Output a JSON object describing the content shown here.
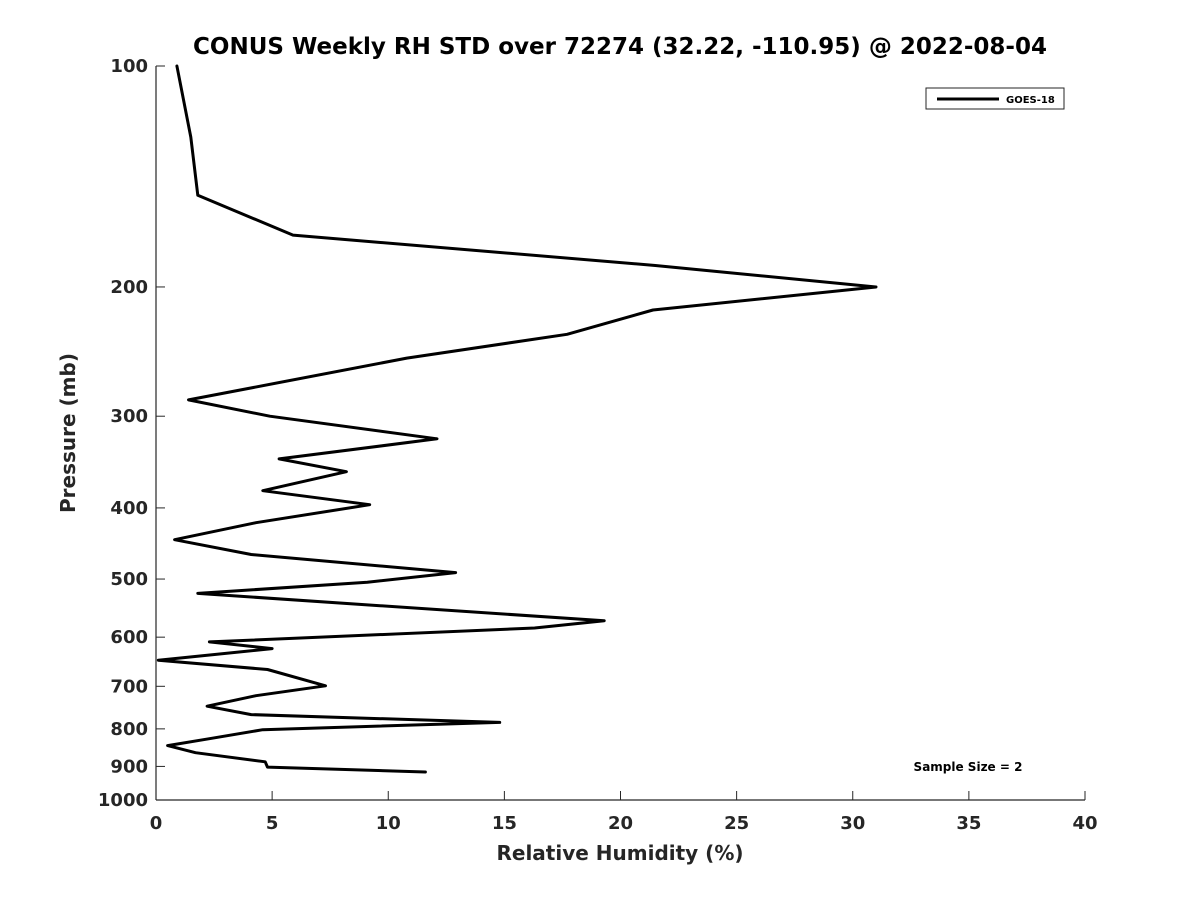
{
  "chart_data": {
    "type": "line",
    "title": "CONUS Weekly RH STD over 72274 (32.22, -110.95) @ 2022-08-04",
    "xlabel": "Relative Humidity (%)",
    "ylabel": "Pressure (mb)",
    "xlim": [
      0,
      40
    ],
    "ylim": [
      100,
      1000
    ],
    "yscale": "log",
    "y_reversed": true,
    "x_ticks": [
      0,
      5,
      10,
      15,
      20,
      25,
      30,
      35,
      40
    ],
    "y_ticks": [
      100,
      200,
      300,
      400,
      500,
      600,
      700,
      800,
      900,
      1000
    ],
    "grid": false,
    "legend_position": "top-right",
    "series": [
      {
        "name": "GOES-18",
        "color": "#000000",
        "points": [
          [
            0.9,
            100
          ],
          [
            1.5,
            125
          ],
          [
            1.8,
            150
          ],
          [
            5.9,
            170
          ],
          [
            21.5,
            187
          ],
          [
            31.0,
            200
          ],
          [
            21.4,
            215
          ],
          [
            17.7,
            232
          ],
          [
            10.8,
            250
          ],
          [
            1.4,
            285
          ],
          [
            4.9,
            300
          ],
          [
            12.1,
            322
          ],
          [
            5.3,
            343
          ],
          [
            8.2,
            357
          ],
          [
            4.6,
            379
          ],
          [
            9.2,
            396
          ],
          [
            4.3,
            419
          ],
          [
            0.8,
            442
          ],
          [
            4.1,
            463
          ],
          [
            12.9,
            490
          ],
          [
            9.1,
            505
          ],
          [
            1.8,
            523
          ],
          [
            19.3,
            570
          ],
          [
            16.3,
            583
          ],
          [
            2.3,
            609
          ],
          [
            5.0,
            622
          ],
          [
            0.1,
            645
          ],
          [
            4.8,
            664
          ],
          [
            7.3,
            699
          ],
          [
            4.3,
            721
          ],
          [
            2.2,
            745
          ],
          [
            4.1,
            765
          ],
          [
            14.8,
            784
          ],
          [
            4.6,
            802
          ],
          [
            2.3,
            825
          ],
          [
            0.5,
            843
          ],
          [
            1.7,
            862
          ],
          [
            4.7,
            887
          ],
          [
            4.8,
            902
          ],
          [
            11.6,
            916
          ]
        ]
      }
    ],
    "annotations": [
      {
        "text": "Sample Size = 2"
      }
    ]
  }
}
